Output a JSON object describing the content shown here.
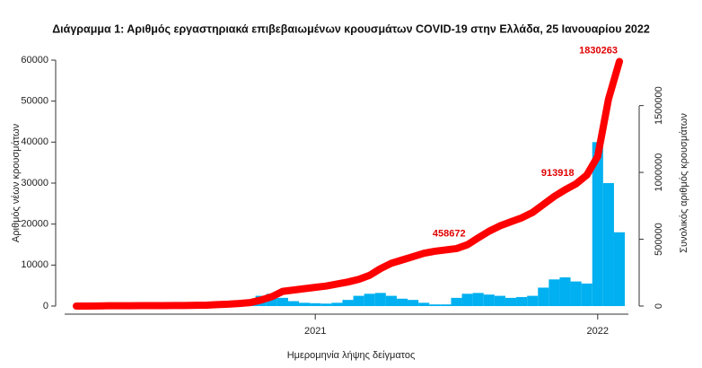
{
  "chart_data": {
    "type": "bar",
    "title": "Διάγραμμα 1: Αριθμός εργαστηριακά επιβεβαιωμένων κρουσμάτων COVID-19 στην Ελλάδα, 25 Ιανουαρίου 2022",
    "x_label": "Ημερομηνία λήψης δείγματος",
    "y_label": "Αριθμός νέων κρουσμάτων",
    "y2_label": "Συνολικός αριθμός κρουσμάτων",
    "categories": [
      null,
      null,
      null,
      null,
      null,
      null,
      null,
      null,
      null,
      null,
      null,
      null,
      null,
      null,
      null,
      null,
      null,
      null,
      null,
      null,
      null,
      null,
      "2021",
      null,
      null,
      null,
      null,
      null,
      null,
      null,
      null,
      null,
      null,
      null,
      null,
      null,
      null,
      null,
      null,
      null,
      null,
      null,
      null,
      null,
      null,
      null,
      null,
      null,
      "2022",
      null,
      null
    ],
    "ylim": [
      0,
      60000
    ],
    "yticks": [
      0,
      10000,
      20000,
      30000,
      40000,
      50000,
      60000
    ],
    "y2lim": [
      0,
      1840000
    ],
    "y2ticks": [
      0,
      500000,
      1000000,
      1500000
    ],
    "series": [
      {
        "color": "#00b0f0",
        "values": [
          0,
          20,
          80,
          60,
          20,
          10,
          10,
          20,
          30,
          40,
          50,
          150,
          250,
          300,
          300,
          400,
          600,
          2500,
          3000,
          2000,
          1200,
          800,
          700,
          600,
          800,
          1500,
          2500,
          3000,
          3200,
          2500,
          1800,
          1500,
          800,
          400,
          400,
          2000,
          3000,
          3200,
          2800,
          2500,
          2000,
          2200,
          2500,
          4500,
          6500,
          7000,
          6000,
          5500,
          40000,
          30000,
          18000
        ]
      },
      {
        "color": "#ff0000",
        "axis": "y2",
        "values": [
          0,
          100,
          1000,
          2200,
          2500,
          2800,
          3000,
          3300,
          3500,
          4000,
          4000,
          5500,
          7000,
          11000,
          14000,
          19000,
          26000,
          45000,
          70000,
          110000,
          120000,
          130000,
          140000,
          150000,
          165000,
          180000,
          200000,
          230000,
          280000,
          320000,
          345000,
          370000,
          395000,
          410000,
          420000,
          430000,
          458672,
          510000,
          560000,
          600000,
          630000,
          660000,
          700000,
          760000,
          820000,
          870000,
          913918,
          980000,
          1120000,
          1550000,
          1830263
        ],
        "value_labels": [
          null,
          null,
          null,
          null,
          null,
          null,
          null,
          null,
          null,
          null,
          null,
          null,
          null,
          null,
          null,
          null,
          null,
          null,
          null,
          null,
          null,
          null,
          null,
          null,
          null,
          null,
          null,
          null,
          null,
          null,
          null,
          null,
          null,
          null,
          null,
          null,
          "458672",
          null,
          null,
          null,
          null,
          null,
          null,
          null,
          null,
          null,
          "913918",
          null,
          null,
          null,
          "1830263"
        ]
      }
    ]
  }
}
